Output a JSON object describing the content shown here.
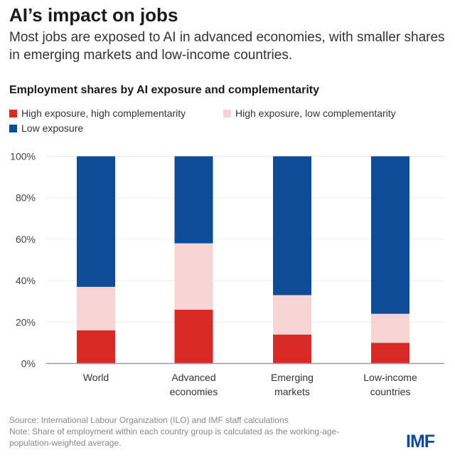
{
  "header": {
    "title": "AI’s impact on jobs",
    "subtitle": "Most jobs are exposed to AI in advanced economies, with smaller shares in emerging markets and low-income countries."
  },
  "colors": {
    "high_high": "#d92b26",
    "high_low": "#f7d4d4",
    "low": "#0f4c97"
  },
  "chart_data": {
    "type": "bar",
    "stacked": true,
    "title": "Employment shares by AI exposure and complementarity",
    "categories": [
      [
        "World"
      ],
      [
        "Advanced",
        "economies"
      ],
      [
        "Emerging",
        "markets"
      ],
      [
        "Low-income",
        "countries"
      ]
    ],
    "series": [
      {
        "name": "High exposure, high complementarity",
        "values": [
          16,
          26,
          14,
          10
        ]
      },
      {
        "name": "High exposure, low complementarity",
        "values": [
          21,
          32,
          19,
          14
        ]
      },
      {
        "name": "Low exposure",
        "values": [
          63,
          42,
          67,
          76
        ]
      }
    ],
    "ylim": [
      0,
      100
    ],
    "yticks": [
      "0%",
      "20%",
      "40%",
      "60%",
      "80%",
      "100%"
    ],
    "grid": true,
    "legend": "top-left"
  },
  "footer": {
    "source": "Source: International Labour Organization (ILO) and IMF staff calculations",
    "note1": "Note: Share of employment within each country group is calculated as the working-age-",
    "note2": "population-weighted average."
  },
  "logo": "IMF"
}
